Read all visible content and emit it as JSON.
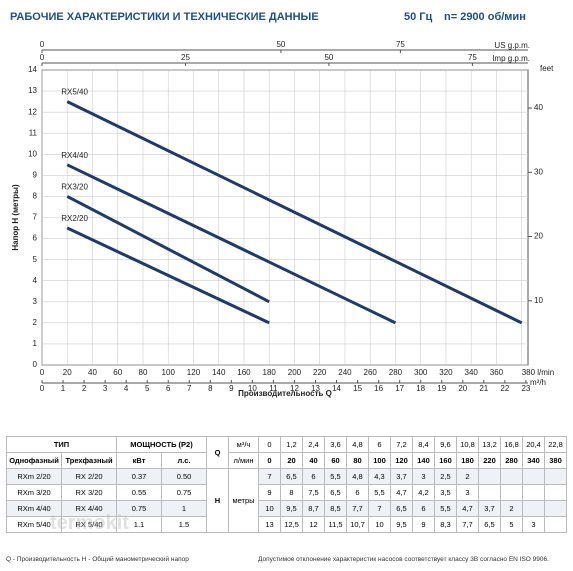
{
  "header": {
    "title": "РАБОЧИЕ ХАРАКТЕРИСТИКИ И ТЕХНИЧЕСКИЕ ДАННЫЕ",
    "frequency": "50 Гц",
    "speed": "n= 2900 об/мин"
  },
  "chart_data": {
    "type": "line",
    "x_label": "Производительность Q",
    "y_label": "Напор H (метры)",
    "xlim": [
      0,
      385
    ],
    "xticks": [
      0,
      20,
      40,
      60,
      80,
      100,
      120,
      140,
      160,
      180,
      200,
      220,
      240,
      260,
      280,
      300,
      320,
      340,
      360,
      {
        "value": 380,
        "label": "380 l/min"
      }
    ],
    "ylim": [
      0,
      14
    ],
    "yticks": [
      0,
      1,
      2,
      3,
      4,
      5,
      6,
      7,
      8,
      9,
      10,
      11,
      12,
      13,
      14
    ],
    "y2lim": [
      0,
      45.93
    ],
    "y2ticks": [
      10,
      20,
      30,
      40
    ],
    "y2_unit": "feet",
    "top_axis_us": {
      "unit": "US g.p.m.",
      "lim": [
        0,
        101.7
      ],
      "ticks": [
        0,
        50,
        75
      ]
    },
    "top_axis_imp": {
      "unit": "Imp g.p.m.",
      "lim": [
        0,
        84.69
      ],
      "ticks": [
        0,
        25,
        50,
        75
      ]
    },
    "bottom_axis_m3h": {
      "unit": "m³/h",
      "lim": [
        0,
        23.1
      ],
      "ticks": [
        0,
        1,
        2,
        3,
        4,
        5,
        6,
        7,
        8,
        9,
        10,
        11,
        12,
        13,
        14,
        15,
        16,
        17,
        18,
        19,
        20,
        21,
        22,
        23
      ]
    },
    "grid": true,
    "series": [
      {
        "name": "RX5/40",
        "color": "#1f3a6e",
        "x": [
          20,
          380
        ],
        "values": [
          12.5,
          2
        ]
      },
      {
        "name": "RX4/40",
        "color": "#1f3a6e",
        "x": [
          20,
          280
        ],
        "values": [
          9.5,
          2
        ]
      },
      {
        "name": "RX3/20",
        "color": "#1f3a6e",
        "x": [
          20,
          180
        ],
        "values": [
          8,
          3
        ]
      },
      {
        "name": "RX2/20",
        "color": "#1f3a6e",
        "x": [
          20,
          180
        ],
        "values": [
          6.5,
          2
        ]
      }
    ]
  },
  "table": {
    "headers": {
      "type": "ТИП",
      "power": "МОЩНОСТЬ (P2)",
      "q": "Q",
      "single": "Однофазный",
      "three": "Трехфазный",
      "kw": "кВт",
      "hp": "л.с.",
      "m3h": "м³/ч",
      "lmin": "л/мин",
      "h": "H",
      "meters": "метры"
    },
    "flow_m3h": [
      "0",
      "1,2",
      "2,4",
      "3,6",
      "4,8",
      "6",
      "7,2",
      "8,4",
      "9,6",
      "10,8",
      "13,2",
      "16,8",
      "20,4",
      "22,8"
    ],
    "flow_lmin": [
      "0",
      "20",
      "40",
      "60",
      "80",
      "100",
      "120",
      "140",
      "160",
      "180",
      "220",
      "280",
      "340",
      "380"
    ],
    "rows": [
      {
        "single": "RXm 2/20",
        "three": "RX 2/20",
        "kw": "0.37",
        "hp": "0.50",
        "h": [
          "7",
          "6,5",
          "6",
          "5,5",
          "4,8",
          "4,3",
          "3,7",
          "3",
          "2,5",
          "2"
        ]
      },
      {
        "single": "RXm 3/20",
        "three": "RX 3/20",
        "kw": "0.55",
        "hp": "0.75",
        "h": [
          "9",
          "8",
          "7,5",
          "6,5",
          "6",
          "5,5",
          "4,7",
          "4,2",
          "3,5",
          "3"
        ]
      },
      {
        "single": "RXm 4/40",
        "three": "RX 4/40",
        "kw": "0.75",
        "hp": "1",
        "h": [
          "10",
          "9,5",
          "8,7",
          "8,5",
          "7,7",
          "7",
          "6,5",
          "6",
          "5,5",
          "4,7",
          "3,7",
          "2"
        ]
      },
      {
        "single": "RXm 5/40",
        "three": "RX 5/40",
        "kw": "1.1",
        "hp": "1.5",
        "h": [
          "13",
          "12,5",
          "12",
          "11,5",
          "10,7",
          "10",
          "9,5",
          "9",
          "8,3",
          "7,7",
          "6,5",
          "5",
          "3"
        ]
      }
    ]
  },
  "footnote": {
    "left": "Q - Производительность   H - Общий манометрический напор",
    "right": "Допустимое отклонение характеристик насосов соответствует классу 3B согласно EN ISO 9906."
  },
  "watermark": "termokit"
}
